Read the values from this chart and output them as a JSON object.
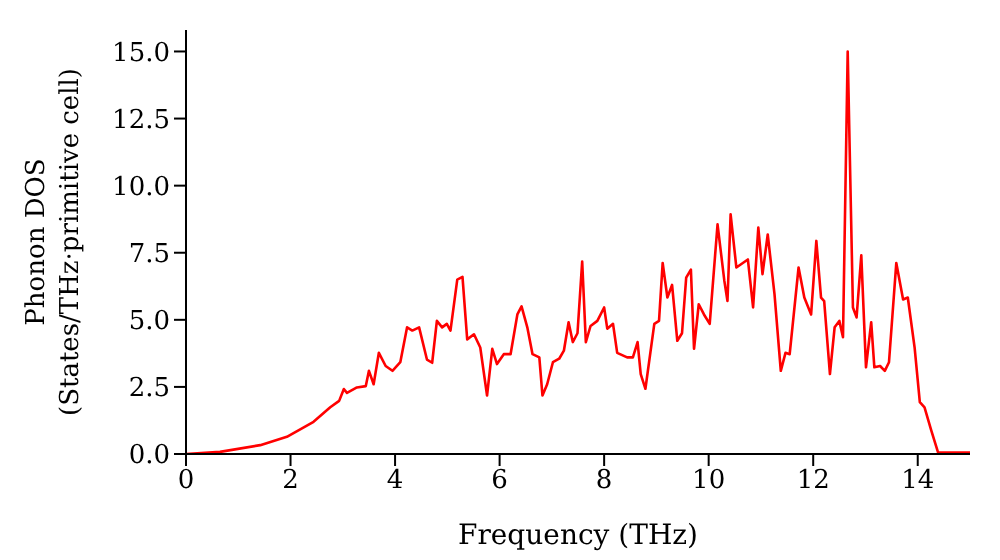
{
  "chart_data": {
    "type": "line",
    "xlabel": "Frequency (THz)",
    "ylabel": "Phonon DOS\n(States/THz·primitive cell)",
    "x": [
      0,
      0.65,
      1.42,
      1.93,
      2.44,
      2.76,
      2.93,
      3.02,
      3.08,
      3.27,
      3.44,
      3.5,
      3.59,
      3.69,
      3.82,
      3.95,
      4.1,
      4.23,
      4.33,
      4.46,
      4.61,
      4.71,
      4.8,
      4.9,
      4.99,
      5.06,
      5.19,
      5.29,
      5.38,
      5.51,
      5.63,
      5.76,
      5.86,
      5.95,
      6.08,
      6.21,
      6.34,
      6.42,
      6.53,
      6.63,
      6.76,
      6.82,
      6.91,
      7.02,
      7.14,
      7.23,
      7.32,
      7.4,
      7.49,
      7.58,
      7.65,
      7.74,
      7.87,
      8.0,
      8.06,
      8.17,
      8.25,
      8.44,
      8.55,
      8.64,
      8.7,
      8.79,
      8.96,
      9.05,
      9.12,
      9.21,
      9.3,
      9.4,
      9.49,
      9.57,
      9.66,
      9.72,
      9.81,
      9.91,
      10.02,
      10.17,
      10.3,
      10.36,
      10.42,
      10.53,
      10.75,
      10.85,
      10.95,
      11.03,
      11.13,
      11.26,
      11.38,
      11.47,
      11.55,
      11.72,
      11.83,
      11.96,
      12.06,
      12.15,
      12.21,
      12.32,
      12.41,
      12.5,
      12.57,
      12.66,
      12.76,
      12.83,
      12.92,
      13.01,
      13.11,
      13.17,
      13.28,
      13.37,
      13.45,
      13.59,
      13.72,
      13.81,
      13.94,
      14.04,
      14.13,
      14.26,
      14.39,
      15.0
    ],
    "series": [
      {
        "color": "#ff0000",
        "values": [
          0,
          0.08,
          0.33,
          0.64,
          1.2,
          1.74,
          1.98,
          2.42,
          2.28,
          2.48,
          2.53,
          3.1,
          2.6,
          3.77,
          3.28,
          3.1,
          3.42,
          4.72,
          4.6,
          4.72,
          3.52,
          3.4,
          4.96,
          4.72,
          4.85,
          4.6,
          6.5,
          6.6,
          4.27,
          4.46,
          3.97,
          2.18,
          3.92,
          3.35,
          3.72,
          3.72,
          5.2,
          5.5,
          4.72,
          3.72,
          3.6,
          2.18,
          2.6,
          3.42,
          3.55,
          3.85,
          4.91,
          4.17,
          4.5,
          7.17,
          4.17,
          4.77,
          4.96,
          5.46,
          4.67,
          4.85,
          3.77,
          3.6,
          3.6,
          4.17,
          2.98,
          2.43,
          4.85,
          4.96,
          7.12,
          5.83,
          6.3,
          4.22,
          4.5,
          6.57,
          6.87,
          3.92,
          5.58,
          5.2,
          4.85,
          8.56,
          6.45,
          5.7,
          8.93,
          6.95,
          7.25,
          5.46,
          8.44,
          6.7,
          8.18,
          5.95,
          3.1,
          3.77,
          3.72,
          6.95,
          5.83,
          5.2,
          7.94,
          5.83,
          5.7,
          2.98,
          4.72,
          4.96,
          4.35,
          15.0,
          5.46,
          5.09,
          7.4,
          3.23,
          4.91,
          3.23,
          3.28,
          3.1,
          3.42,
          7.12,
          5.76,
          5.83,
          3.97,
          1.93,
          1.74,
          0.87,
          0.05,
          0.05
        ]
      }
    ],
    "xlim": [
      0,
      15
    ],
    "xticks": [
      0,
      2,
      4,
      6,
      8,
      10,
      12,
      14
    ],
    "ylim": [
      0,
      15.8
    ],
    "yticks": [
      {
        "value": 0,
        "label": "0.0"
      },
      {
        "value": 2.5,
        "label": "2.5"
      },
      {
        "value": 5,
        "label": "5.0"
      },
      {
        "value": 7.5,
        "label": "7.5"
      },
      {
        "value": 10,
        "label": "10.0"
      },
      {
        "value": 12.5,
        "label": "12.5"
      },
      {
        "value": 15,
        "label": "15.0"
      }
    ],
    "grid": false,
    "legend": false
  }
}
